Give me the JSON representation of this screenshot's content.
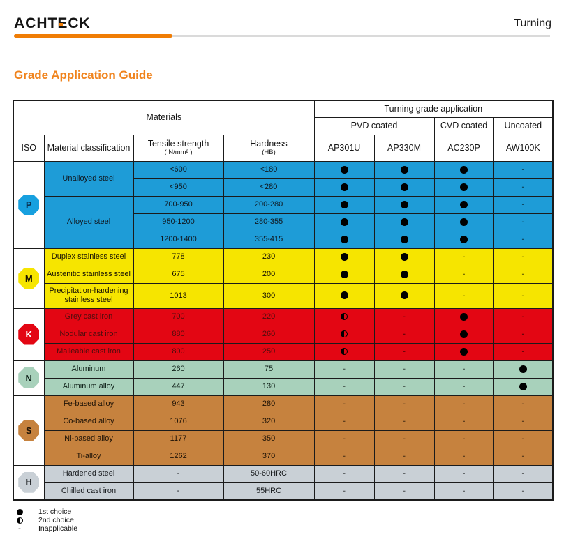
{
  "header": {
    "logo": {
      "pre": "ACHT",
      "e": "E",
      "post": "CK"
    },
    "page_label": "Turning"
  },
  "title": "Grade Application Guide",
  "colors": {
    "accent_orange": "#F0831C",
    "rule_orange": "#F07D05",
    "rule_gray": "#DADADA",
    "p_blue": "#1E9CD7",
    "m_yellow": "#F6E500",
    "k_red": "#E30613",
    "n_green": "#A8D1BB",
    "s_brown": "#C6823E",
    "h_gray": "#C9D0D6"
  },
  "table": {
    "materials_header": "Materials",
    "application_header": "Turning grade application",
    "coating_groups": [
      {
        "label": "PVD coated"
      },
      {
        "label": "CVD coated"
      },
      {
        "label": "Uncoated"
      }
    ],
    "columns": [
      {
        "label": "ISO",
        "sub": ""
      },
      {
        "label": "Material classification",
        "sub": ""
      },
      {
        "label": "Tensile strength",
        "sub": "( N/mm² )"
      },
      {
        "label": "Hardness",
        "sub": "(HB)"
      }
    ],
    "grades": [
      "AP301U",
      "AP330M",
      "AC230P",
      "AW100K"
    ],
    "sections": [
      {
        "iso": "P",
        "color": "#1E9CD7",
        "octagon_color": "#17A0DF",
        "letter_color": "#0A3050",
        "text_color": "#101820",
        "groups": [
          {
            "material": "Unalloyed steel",
            "rows": [
              {
                "tensile": "<600",
                "hardness": "<180",
                "grades": [
                  "full",
                  "full",
                  "full",
                  "dash"
                ]
              },
              {
                "tensile": "<950",
                "hardness": "<280",
                "grades": [
                  "full",
                  "full",
                  "full",
                  "dash"
                ]
              }
            ]
          },
          {
            "material": "Alloyed steel",
            "rows": [
              {
                "tensile": "700-950",
                "hardness": "200-280",
                "grades": [
                  "full",
                  "full",
                  "full",
                  "dash"
                ]
              },
              {
                "tensile": "950-1200",
                "hardness": "280-355",
                "grades": [
                  "full",
                  "full",
                  "full",
                  "dash"
                ]
              },
              {
                "tensile": "1200-1400",
                "hardness": "355-415",
                "grades": [
                  "full",
                  "full",
                  "full",
                  "dash"
                ]
              }
            ]
          }
        ]
      },
      {
        "iso": "M",
        "color": "#F6E500",
        "octagon_color": "#F6E500",
        "letter_color": "#181200",
        "text_color": "#161104",
        "groups": [
          {
            "material": "Duplex stainless steel",
            "rows": [
              {
                "tensile": "778",
                "hardness": "230",
                "grades": [
                  "full",
                  "full",
                  "dash",
                  "dash"
                ]
              }
            ]
          },
          {
            "material": "Austenitic stainless steel",
            "rows": [
              {
                "tensile": "675",
                "hardness": "200",
                "grades": [
                  "full",
                  "full",
                  "dash",
                  "dash"
                ]
              }
            ]
          },
          {
            "material": "Precipitation-hardening stainless steel",
            "rows": [
              {
                "tensile": "1013",
                "hardness": "300",
                "h": 36,
                "grades": [
                  "full",
                  "full",
                  "dash",
                  "dash"
                ]
              }
            ]
          }
        ]
      },
      {
        "iso": "K",
        "color": "#E30613",
        "octagon_color": "#E30613",
        "letter_color": "#ffffff",
        "text_color": "#4D0E0E",
        "groups": [
          {
            "material": "Grey cast iron",
            "rows": [
              {
                "tensile": "700",
                "hardness": "220",
                "grades": [
                  "half",
                  "dash",
                  "full",
                  "dash"
                ]
              }
            ]
          },
          {
            "material": "Nodular cast iron",
            "rows": [
              {
                "tensile": "880",
                "hardness": "260",
                "grades": [
                  "half",
                  "dash",
                  "full",
                  "dash"
                ]
              }
            ]
          },
          {
            "material": "Malleable cast iron",
            "rows": [
              {
                "tensile": "800",
                "hardness": "250",
                "grades": [
                  "half",
                  "dash",
                  "full",
                  "dash"
                ]
              }
            ]
          }
        ]
      },
      {
        "iso": "N",
        "color": "#A8D1BB",
        "octagon_color": "#A8D1BB",
        "letter_color": "#0F2018",
        "text_color": "#0F2018",
        "groups": [
          {
            "material": "Aluminum",
            "rows": [
              {
                "tensile": "260",
                "hardness": "75",
                "grades": [
                  "dash",
                  "dash",
                  "dash",
                  "full"
                ]
              }
            ]
          },
          {
            "material": "Aluminum alloy",
            "rows": [
              {
                "tensile": "447",
                "hardness": "130",
                "grades": [
                  "dash",
                  "dash",
                  "dash",
                  "full"
                ]
              }
            ]
          }
        ]
      },
      {
        "iso": "S",
        "color": "#C6823E",
        "octagon_color": "#C6823E",
        "letter_color": "#1D1206",
        "text_color": "#1D1206",
        "groups": [
          {
            "material": "Fe-based alloy",
            "rows": [
              {
                "tensile": "943",
                "hardness": "280",
                "grades": [
                  "dash",
                  "dash",
                  "dash",
                  "dash"
                ]
              }
            ]
          },
          {
            "material": "Co-based alloy",
            "rows": [
              {
                "tensile": "1076",
                "hardness": "320",
                "grades": [
                  "dash",
                  "dash",
                  "dash",
                  "dash"
                ]
              }
            ]
          },
          {
            "material": "Ni-based alloy",
            "rows": [
              {
                "tensile": "1177",
                "hardness": "350",
                "grades": [
                  "dash",
                  "dash",
                  "dash",
                  "dash"
                ]
              }
            ]
          },
          {
            "material": "Ti-alloy",
            "rows": [
              {
                "tensile": "1262",
                "hardness": "370",
                "grades": [
                  "dash",
                  "dash",
                  "dash",
                  "dash"
                ]
              }
            ]
          }
        ]
      },
      {
        "iso": "H",
        "color": "#C9D0D6",
        "octagon_color": "#C9D0D6",
        "letter_color": "#15181B",
        "text_color": "#15181B",
        "groups": [
          {
            "material": "Hardened steel",
            "rows": [
              {
                "tensile": "-",
                "hardness": "50-60HRC",
                "grades": [
                  "dash",
                  "dash",
                  "dash",
                  "dash"
                ]
              }
            ]
          },
          {
            "material": "Chilled cast iron",
            "rows": [
              {
                "tensile": "-",
                "hardness": "55HRC",
                "grades": [
                  "dash",
                  "dash",
                  "dash",
                  "dash"
                ]
              }
            ]
          }
        ]
      }
    ]
  },
  "legend": {
    "dash_char": "-",
    "items": [
      {
        "symbol": "full",
        "label": "1st choice"
      },
      {
        "symbol": "half",
        "label": "2nd choice"
      },
      {
        "symbol": "dash",
        "label": "Inapplicable"
      }
    ]
  }
}
